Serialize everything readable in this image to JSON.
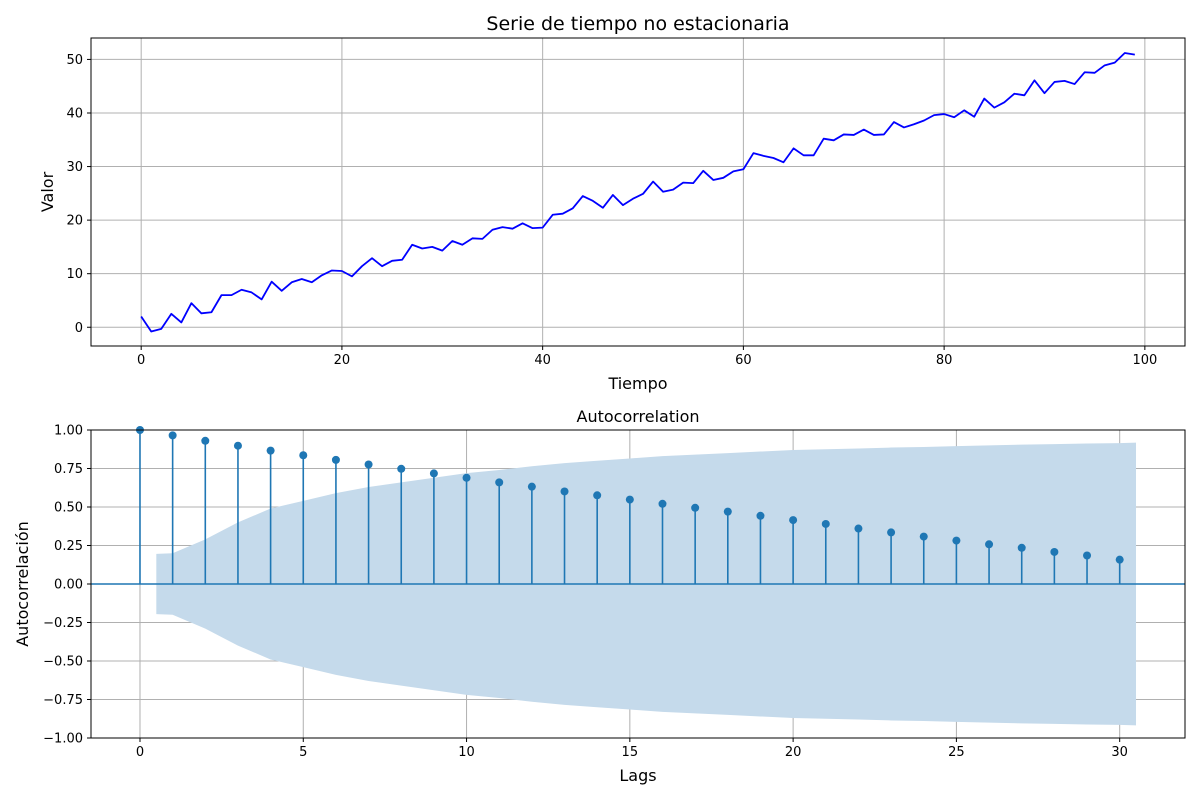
{
  "chart_data": [
    {
      "type": "line",
      "title": "Serie de tiempo no estacionaria",
      "xlabel": "Tiempo",
      "ylabel": "Valor",
      "xlim": [
        -5,
        104
      ],
      "ylim": [
        -3.5,
        54
      ],
      "xticks": [
        0,
        20,
        40,
        60,
        80,
        100
      ],
      "yticks": [
        0,
        10,
        20,
        30,
        40,
        50
      ],
      "grid": true,
      "line_color": "#0000ff",
      "x": [
        0,
        1,
        2,
        3,
        4,
        5,
        6,
        7,
        8,
        9,
        10,
        11,
        12,
        13,
        14,
        15,
        16,
        17,
        18,
        19,
        20,
        21,
        22,
        23,
        24,
        25,
        26,
        27,
        28,
        29,
        30,
        31,
        32,
        33,
        34,
        35,
        36,
        37,
        38,
        39,
        40,
        41,
        42,
        43,
        44,
        45,
        46,
        47,
        48,
        49,
        50,
        51,
        52,
        53,
        54,
        55,
        56,
        57,
        58,
        59,
        60,
        61,
        62,
        63,
        64,
        65,
        66,
        67,
        68,
        69,
        70,
        71,
        72,
        73,
        74,
        75,
        76,
        77,
        78,
        79,
        80,
        81,
        82,
        83,
        84,
        85,
        86,
        87,
        88,
        89,
        90,
        91,
        92,
        93,
        94,
        95,
        96,
        97,
        98,
        99
      ],
      "y": [
        2.0,
        -0.8,
        -0.3,
        2.5,
        0.9,
        4.5,
        2.6,
        2.8,
        6.0,
        6.0,
        7.0,
        6.5,
        5.2,
        8.5,
        6.8,
        8.4,
        9.0,
        8.4,
        9.7,
        10.6,
        10.5,
        9.5,
        11.4,
        12.9,
        11.4,
        12.4,
        12.6,
        15.4,
        14.7,
        15.0,
        14.3,
        16.1,
        15.4,
        16.6,
        16.5,
        18.2,
        18.7,
        18.4,
        19.4,
        18.5,
        18.6,
        21.0,
        21.2,
        22.2,
        24.5,
        23.6,
        22.3,
        24.7,
        22.8,
        24.0,
        24.9,
        27.2,
        25.3,
        25.7,
        27.0,
        26.9,
        29.2,
        27.5,
        27.9,
        29.1,
        29.5,
        32.5,
        32.0,
        31.6,
        30.8,
        33.4,
        32.1,
        32.1,
        35.2,
        34.9,
        36.0,
        35.9,
        36.9,
        35.9,
        36.0,
        38.3,
        37.3,
        37.9,
        38.6,
        39.6,
        39.8,
        39.2,
        40.5,
        39.3,
        42.7,
        41.0,
        42.0,
        43.6,
        43.3,
        46.1,
        43.7,
        45.8,
        46.0,
        45.4,
        47.6,
        47.5,
        48.9,
        49.4,
        51.2,
        50.9
      ]
    },
    {
      "type": "stem",
      "title": "Autocorrelation",
      "xlabel": "Lags",
      "ylabel": "Autocorrelación",
      "xlim": [
        -1.5,
        32
      ],
      "ylim": [
        -1.0,
        1.0
      ],
      "xticks": [
        0,
        5,
        10,
        15,
        20,
        25,
        30
      ],
      "yticks": [
        -1.0,
        -0.75,
        -0.5,
        -0.25,
        0.0,
        0.25,
        0.5,
        0.75,
        1.0
      ],
      "ytick_labels": [
        "−1.00",
        "−0.75",
        "−0.50",
        "−0.25",
        "0.00",
        "0.25",
        "0.50",
        "0.75",
        "1.00"
      ],
      "grid": true,
      "stem_color": "#1f77b4",
      "band_color": "#c5daeb",
      "lags": [
        0,
        1,
        2,
        3,
        4,
        5,
        6,
        7,
        8,
        9,
        10,
        11,
        12,
        13,
        14,
        15,
        16,
        17,
        18,
        19,
        20,
        21,
        22,
        23,
        24,
        25,
        26,
        27,
        28,
        29,
        30
      ],
      "acf": [
        1.0,
        0.965,
        0.93,
        0.898,
        0.866,
        0.836,
        0.806,
        0.776,
        0.748,
        0.718,
        0.69,
        0.66,
        0.632,
        0.601,
        0.576,
        0.548,
        0.521,
        0.495,
        0.47,
        0.443,
        0.415,
        0.39,
        0.36,
        0.335,
        0.308,
        0.282,
        0.258,
        0.235,
        0.208,
        0.185,
        0.158
      ],
      "conf_band_lags": [
        0.5,
        1,
        2,
        3,
        4,
        5,
        6,
        7,
        8,
        9,
        10,
        11,
        12,
        13,
        14,
        15,
        16,
        17,
        18,
        19,
        20,
        21,
        22,
        23,
        24,
        25,
        26,
        27,
        28,
        29,
        30,
        30.5
      ],
      "conf_band_upper": [
        0.196,
        0.2,
        0.29,
        0.4,
        0.49,
        0.54,
        0.59,
        0.63,
        0.66,
        0.69,
        0.72,
        0.74,
        0.765,
        0.785,
        0.8,
        0.815,
        0.83,
        0.84,
        0.85,
        0.86,
        0.87,
        0.875,
        0.88,
        0.886,
        0.89,
        0.895,
        0.9,
        0.905,
        0.908,
        0.912,
        0.915,
        0.918
      ]
    }
  ]
}
